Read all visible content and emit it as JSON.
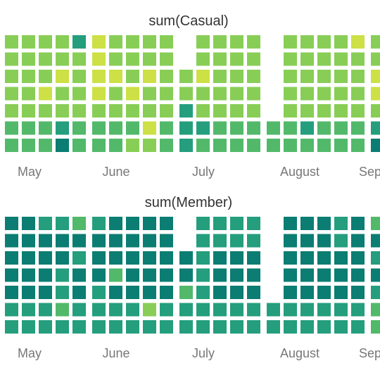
{
  "color_scale": [
    "#0b7d72",
    "#249e7d",
    "#52b96a",
    "#88ce56",
    "#cde045"
  ],
  "chart_data": [
    {
      "type": "heatmap",
      "title": "sum(Casual)",
      "months": [
        "May",
        "June",
        "July",
        "August",
        "Sep"
      ],
      "values": [
        [
          3,
          3,
          3,
          3,
          1,
          4,
          3,
          3,
          3,
          3,
          null,
          3,
          3,
          3,
          3,
          null,
          3,
          3,
          3,
          3,
          4,
          3
        ],
        [
          3,
          3,
          3,
          3,
          3,
          4,
          3,
          3,
          3,
          3,
          null,
          3,
          3,
          3,
          3,
          null,
          3,
          3,
          3,
          3,
          3,
          3
        ],
        [
          3,
          3,
          3,
          4,
          3,
          4,
          4,
          3,
          4,
          3,
          3,
          4,
          3,
          3,
          3,
          null,
          3,
          3,
          3,
          3,
          3,
          4
        ],
        [
          3,
          3,
          4,
          3,
          3,
          4,
          3,
          4,
          3,
          3,
          3,
          3,
          3,
          3,
          3,
          null,
          3,
          3,
          3,
          3,
          3,
          4
        ],
        [
          3,
          3,
          3,
          3,
          3,
          3,
          3,
          3,
          3,
          3,
          1,
          3,
          3,
          3,
          3,
          null,
          3,
          3,
          3,
          3,
          3,
          3
        ],
        [
          2,
          2,
          2,
          1,
          2,
          2,
          2,
          2,
          4,
          2,
          1,
          1,
          2,
          2,
          2,
          2,
          2,
          1,
          2,
          2,
          2,
          1
        ],
        [
          2,
          2,
          2,
          0,
          2,
          2,
          2,
          3,
          3,
          2,
          1,
          2,
          2,
          2,
          2,
          2,
          2,
          2,
          2,
          2,
          2,
          0
        ]
      ]
    },
    {
      "type": "heatmap",
      "title": "sum(Member)",
      "months": [
        "May",
        "June",
        "July",
        "August",
        "Sep"
      ],
      "values": [
        [
          0,
          0,
          1,
          1,
          2,
          1,
          0,
          0,
          0,
          0,
          null,
          1,
          1,
          1,
          1,
          null,
          0,
          0,
          0,
          1,
          0,
          2
        ],
        [
          0,
          0,
          0,
          0,
          0,
          0,
          0,
          0,
          0,
          0,
          null,
          1,
          1,
          1,
          1,
          null,
          0,
          0,
          0,
          1,
          0,
          0
        ],
        [
          0,
          0,
          0,
          0,
          1,
          0,
          0,
          0,
          0,
          0,
          0,
          1,
          0,
          0,
          0,
          null,
          0,
          0,
          0,
          0,
          0,
          1
        ],
        [
          0,
          0,
          0,
          1,
          0,
          0,
          2,
          0,
          0,
          0,
          0,
          1,
          0,
          0,
          0,
          null,
          0,
          0,
          0,
          0,
          0,
          0
        ],
        [
          0,
          0,
          0,
          1,
          0,
          1,
          0,
          0,
          0,
          0,
          2,
          1,
          0,
          0,
          0,
          null,
          0,
          0,
          0,
          0,
          0,
          1
        ],
        [
          1,
          1,
          1,
          2,
          1,
          1,
          1,
          1,
          3,
          1,
          1,
          1,
          1,
          1,
          1,
          1,
          1,
          1,
          1,
          1,
          1,
          2
        ],
        [
          1,
          1,
          1,
          1,
          1,
          1,
          1,
          1,
          1,
          1,
          1,
          1,
          1,
          1,
          1,
          1,
          1,
          1,
          1,
          1,
          1,
          2
        ]
      ]
    }
  ]
}
